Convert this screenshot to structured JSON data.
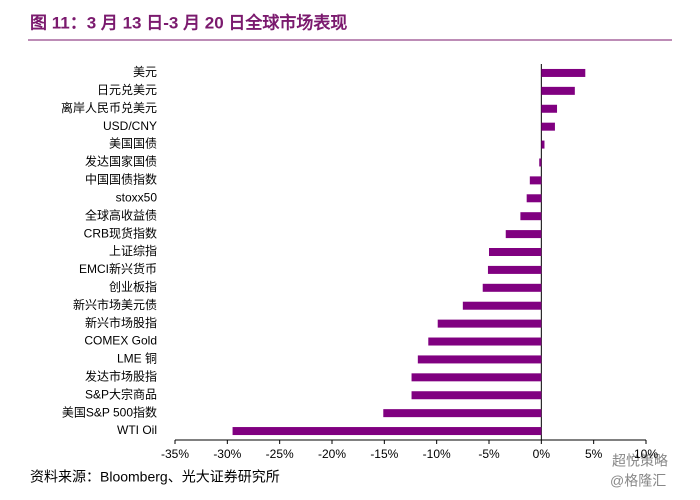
{
  "chart_data": {
    "type": "barh",
    "title": "图 11：3 月 13 日-3 月 20 日全球市场表现",
    "source": "资料来源：Bloomberg、光大证券研究所",
    "watermark": [
      "超悦策略",
      "@格隆汇"
    ],
    "color": "#800080",
    "categories": [
      "美元",
      "日元兑美元",
      "离岸人民币兑美元",
      "USD/CNY",
      "美国国债",
      "发达国家国债",
      "中国国债指数",
      "stoxx50",
      "全球高收益债",
      "CRB现货指数",
      "上证综指",
      "EMCI新兴货币",
      "创业板指",
      "新兴市场美元债",
      "新兴市场股指",
      "COMEX Gold",
      "LME 铜",
      "发达市场股指",
      "S&P大宗商品",
      "美国S&P 500指数",
      "WTI  Oil"
    ],
    "values": [
      4.2,
      3.2,
      1.5,
      1.3,
      0.3,
      -0.2,
      -1.1,
      -1.4,
      -2.0,
      -3.4,
      -5.0,
      -5.1,
      -5.6,
      -7.5,
      -9.9,
      -10.8,
      -11.8,
      -12.4,
      -12.4,
      -15.1,
      -29.5
    ],
    "xlim": [
      -35,
      10
    ],
    "xticks": [
      {
        "value": -35,
        "label": "-35%"
      },
      {
        "value": -30,
        "label": "-30%"
      },
      {
        "value": -25,
        "label": "-25%"
      },
      {
        "value": -20,
        "label": "-20%"
      },
      {
        "value": -15,
        "label": "-15%"
      },
      {
        "value": -10,
        "label": "-10%"
      },
      {
        "value": -5,
        "label": "-5%"
      },
      {
        "value": 0,
        "label": "0%"
      },
      {
        "value": 5,
        "label": "5%"
      },
      {
        "value": 10,
        "label": "10%"
      }
    ],
    "grid": false
  }
}
